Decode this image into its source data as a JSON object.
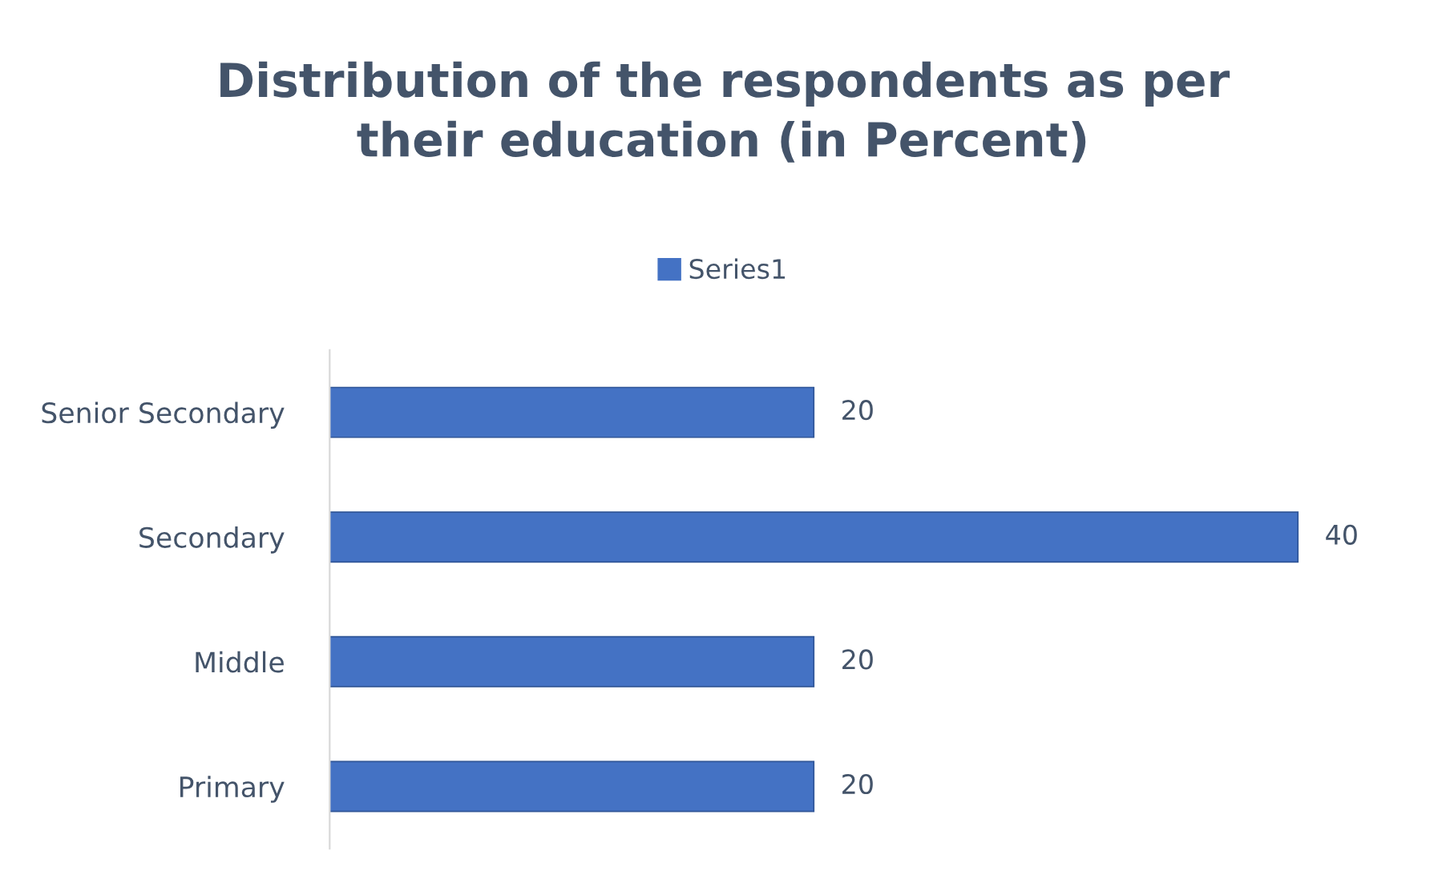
{
  "chart_data": {
    "type": "bar",
    "orientation": "horizontal",
    "title": "Distribution of the respondents as per\ntheir education (in Percent)",
    "categories": [
      "Senior Secondary",
      "Secondary",
      "Middle",
      "Primary"
    ],
    "series": [
      {
        "name": "Series1",
        "color": "#4472c4",
        "values": [
          20,
          40,
          20,
          20
        ]
      }
    ],
    "data_labels": true,
    "legend": "top",
    "grid": false,
    "tick_labels": "y"
  }
}
